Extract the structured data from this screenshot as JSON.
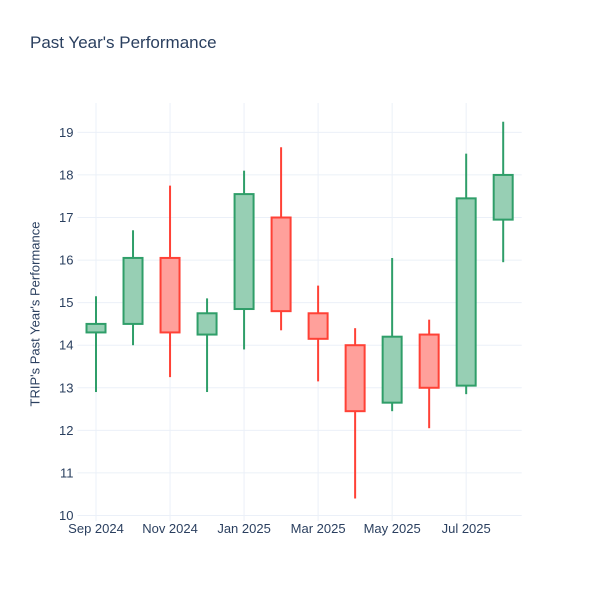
{
  "title": "Past Year's Performance",
  "chart_data": {
    "type": "candlestick",
    "title": "Past Year's Performance",
    "ylabel": "TRIP's Past Year's Performance",
    "xlabel": "",
    "x": [
      "Sep 2024",
      "Oct 2024",
      "Nov 2024",
      "Dec 2024",
      "Jan 2025",
      "Feb 2025",
      "Mar 2025",
      "Apr 2025",
      "May 2025",
      "Jun 2025",
      "Jul 2025",
      "Aug 2025"
    ],
    "open": [
      14.3,
      14.5,
      16.05,
      14.25,
      14.85,
      17.0,
      14.75,
      14.0,
      12.65,
      14.25,
      13.05,
      16.95
    ],
    "high": [
      15.15,
      16.7,
      17.75,
      15.1,
      18.1,
      18.65,
      15.4,
      14.4,
      16.05,
      14.6,
      18.5,
      19.25
    ],
    "low": [
      12.9,
      14.0,
      13.25,
      12.9,
      13.9,
      14.35,
      13.15,
      10.4,
      12.45,
      12.05,
      12.85,
      15.95
    ],
    "close": [
      14.5,
      16.05,
      14.3,
      14.75,
      17.55,
      14.8,
      14.15,
      12.45,
      14.2,
      13.0,
      17.45,
      18.0
    ],
    "y_ticks": [
      10,
      11,
      12,
      13,
      14,
      15,
      16,
      17,
      18,
      19
    ],
    "x_tick_labels": [
      "Sep 2024",
      "Nov 2024",
      "Jan 2025",
      "Mar 2025",
      "May 2025",
      "Jul 2025"
    ],
    "x_tick_indices": [
      0,
      2,
      4,
      6,
      8,
      10
    ],
    "ylim": [
      9.87,
      19.69
    ],
    "grid": true,
    "legend": "none",
    "colors": {
      "increasing_line": "#2F9E69",
      "increasing_fill": "#97CFB4",
      "decreasing_line": "#FF4136",
      "decreasing_fill": "#FFA09B",
      "text": "#2a3f5f",
      "grid": "#EBF0F8",
      "background": "#FFFFFF"
    }
  }
}
